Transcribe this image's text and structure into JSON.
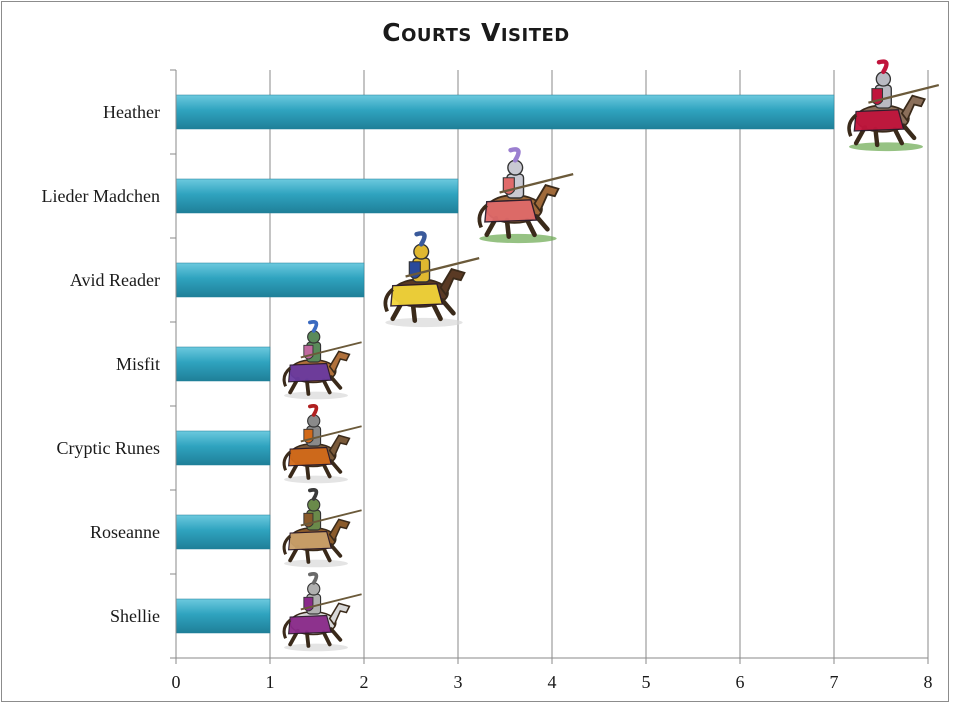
{
  "chart_data": {
    "type": "bar",
    "orientation": "horizontal",
    "title": "Courts Visited",
    "categories": [
      "Heather",
      "Lieder Madchen",
      "Avid Reader",
      "Misfit",
      "Cryptic Runes",
      "Roseanne",
      "Shellie"
    ],
    "values": [
      7,
      3,
      2,
      1,
      1,
      1,
      1
    ],
    "xlim": [
      0,
      8
    ],
    "xticks": [
      "0",
      "1",
      "2",
      "3",
      "4",
      "5",
      "6",
      "7",
      "8"
    ],
    "xlabel": "",
    "ylabel": "",
    "grid": "vertical",
    "legend": "none",
    "bar_color": "#2fa3bf",
    "bar_color_light": "#6cc9de",
    "bar_color_dark": "#1f7f98",
    "bar_end_icon": "jousting-knight-icon"
  }
}
